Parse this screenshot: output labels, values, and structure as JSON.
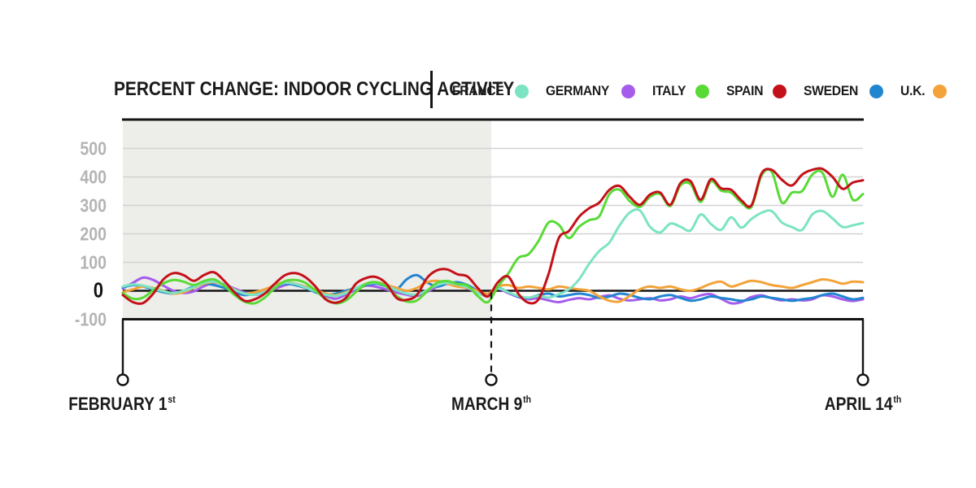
{
  "header": {
    "title": "PERCENT CHANGE: INDOOR CYCLING ACTIVITY",
    "legend": [
      {
        "label": "FRANCE",
        "color": "#7ce3c3"
      },
      {
        "label": "GERMANY",
        "color": "#a55ceb"
      },
      {
        "label": "ITALY",
        "color": "#59da36"
      },
      {
        "label": "SPAIN",
        "color": "#c41119"
      },
      {
        "label": "SWEDEN",
        "color": "#2185d0"
      },
      {
        "label": "U.K.",
        "color": "#f3a339"
      }
    ]
  },
  "x_axis": {
    "labels": [
      {
        "text": "FEBRUARY 1",
        "suffix": "st",
        "day": 0
      },
      {
        "text": "MARCH 9",
        "suffix": "th",
        "day": 37
      },
      {
        "text": "APRIL 14",
        "suffix": "th",
        "day": 73
      }
    ]
  },
  "chart_data": {
    "type": "line",
    "title": "PERCENT CHANGE: INDOOR CYCLING ACTIVITY",
    "x_unit": "days since February 1",
    "x_range": [
      0,
      73
    ],
    "ylim": [
      -100,
      600
    ],
    "yticks": [
      500,
      400,
      300,
      200,
      100,
      0,
      -100
    ],
    "grid": true,
    "zero_line": true,
    "shaded_region": {
      "from_day": 0,
      "to_day": 37,
      "color": "#ededea"
    },
    "event_line": {
      "day": 37,
      "label": "MARCH 9th",
      "style": "dashed"
    },
    "axis_color": "#141414",
    "grid_color": "#d2d2d2",
    "series": [
      {
        "name": "FRANCE",
        "color": "#7ce3c3",
        "values": [
          15,
          22,
          18,
          8,
          -2,
          -8,
          0,
          12,
          28,
          32,
          20,
          4,
          -10,
          -14,
          -4,
          14,
          28,
          24,
          12,
          -2,
          -14,
          -18,
          -8,
          10,
          24,
          28,
          18,
          2,
          -10,
          -14,
          2,
          20,
          28,
          22,
          12,
          -8,
          -18,
          8,
          -5,
          -18,
          -24,
          -18,
          -24,
          -12,
          5,
          40,
          95,
          140,
          170,
          230,
          275,
          282,
          225,
          205,
          236,
          225,
          212,
          268,
          235,
          214,
          258,
          222,
          252,
          274,
          280,
          240,
          224,
          214,
          268,
          280,
          254,
          224,
          230,
          238
        ]
      },
      {
        "name": "GERMANY",
        "color": "#a55ceb",
        "values": [
          8,
          28,
          46,
          38,
          18,
          0,
          -8,
          -2,
          16,
          28,
          22,
          8,
          -6,
          -14,
          -8,
          6,
          20,
          24,
          14,
          -2,
          -18,
          -28,
          -14,
          4,
          18,
          14,
          4,
          -6,
          -14,
          -18,
          -4,
          14,
          24,
          18,
          8,
          -6,
          -14,
          6,
          -8,
          -22,
          -30,
          -26,
          -34,
          -40,
          -32,
          -26,
          -30,
          -22,
          -16,
          -28,
          -34,
          -30,
          -26,
          -34,
          -30,
          -20,
          -26,
          -16,
          -12,
          -28,
          -44,
          -40,
          -22,
          -16,
          -26,
          -34,
          -30,
          -34,
          -30,
          -16,
          -20,
          -30,
          -36,
          -30
        ]
      },
      {
        "name": "ITALY",
        "color": "#59da36",
        "values": [
          -8,
          -28,
          -24,
          2,
          26,
          38,
          32,
          20,
          34,
          40,
          18,
          -14,
          -38,
          -44,
          -24,
          10,
          34,
          38,
          28,
          0,
          -28,
          -44,
          -34,
          -4,
          24,
          30,
          14,
          -18,
          -38,
          -34,
          -2,
          28,
          34,
          24,
          18,
          -18,
          -40,
          15,
          60,
          115,
          128,
          175,
          240,
          232,
          185,
          225,
          248,
          262,
          340,
          355,
          315,
          295,
          330,
          340,
          298,
          370,
          375,
          312,
          385,
          352,
          345,
          310,
          295,
          405,
          418,
          310,
          345,
          350,
          408,
          415,
          330,
          408,
          320,
          340
        ]
      },
      {
        "name": "SPAIN",
        "color": "#c41119",
        "values": [
          -15,
          -40,
          -43,
          -10,
          40,
          62,
          55,
          35,
          55,
          65,
          35,
          -5,
          -35,
          -30,
          -10,
          25,
          55,
          62,
          48,
          15,
          -30,
          -42,
          -25,
          25,
          45,
          48,
          25,
          -25,
          -32,
          -15,
          45,
          72,
          75,
          58,
          50,
          10,
          -20,
          30,
          50,
          -10,
          -42,
          -30,
          60,
          185,
          210,
          260,
          290,
          310,
          355,
          368,
          330,
          302,
          338,
          345,
          302,
          378,
          385,
          320,
          392,
          360,
          355,
          318,
          300,
          412,
          425,
          390,
          370,
          408,
          425,
          428,
          400,
          358,
          380,
          388
        ]
      },
      {
        "name": "SWEDEN",
        "color": "#2185d0",
        "values": [
          12,
          20,
          15,
          5,
          -5,
          -10,
          0,
          15,
          25,
          20,
          10,
          -5,
          -15,
          -10,
          0,
          15,
          25,
          20,
          10,
          -5,
          -15,
          -10,
          0,
          10,
          20,
          25,
          15,
          5,
          40,
          55,
          30,
          15,
          25,
          30,
          20,
          0,
          -15,
          10,
          -5,
          -20,
          -25,
          -15,
          -10,
          -20,
          -15,
          -10,
          -15,
          -25,
          -20,
          -10,
          -15,
          -25,
          -30,
          -20,
          -15,
          -25,
          -35,
          -30,
          -20,
          -25,
          -30,
          -35,
          -30,
          -20,
          -25,
          -30,
          -35,
          -30,
          -25,
          -15,
          -10,
          -20,
          -30,
          -25
        ]
      },
      {
        "name": "U.K.",
        "color": "#f3a339",
        "values": [
          -5,
          5,
          15,
          10,
          0,
          -10,
          -5,
          10,
          25,
          30,
          20,
          5,
          -10,
          -5,
          5,
          20,
          30,
          25,
          15,
          5,
          -10,
          -15,
          -5,
          10,
          25,
          30,
          20,
          10,
          0,
          10,
          30,
          35,
          25,
          15,
          10,
          0,
          -10,
          15,
          20,
          10,
          15,
          10,
          5,
          15,
          10,
          5,
          0,
          -20,
          -35,
          -38,
          -18,
          5,
          15,
          10,
          15,
          5,
          0,
          10,
          25,
          32,
          15,
          25,
          35,
          30,
          20,
          15,
          10,
          20,
          30,
          40,
          35,
          25,
          32,
          30
        ]
      }
    ]
  }
}
